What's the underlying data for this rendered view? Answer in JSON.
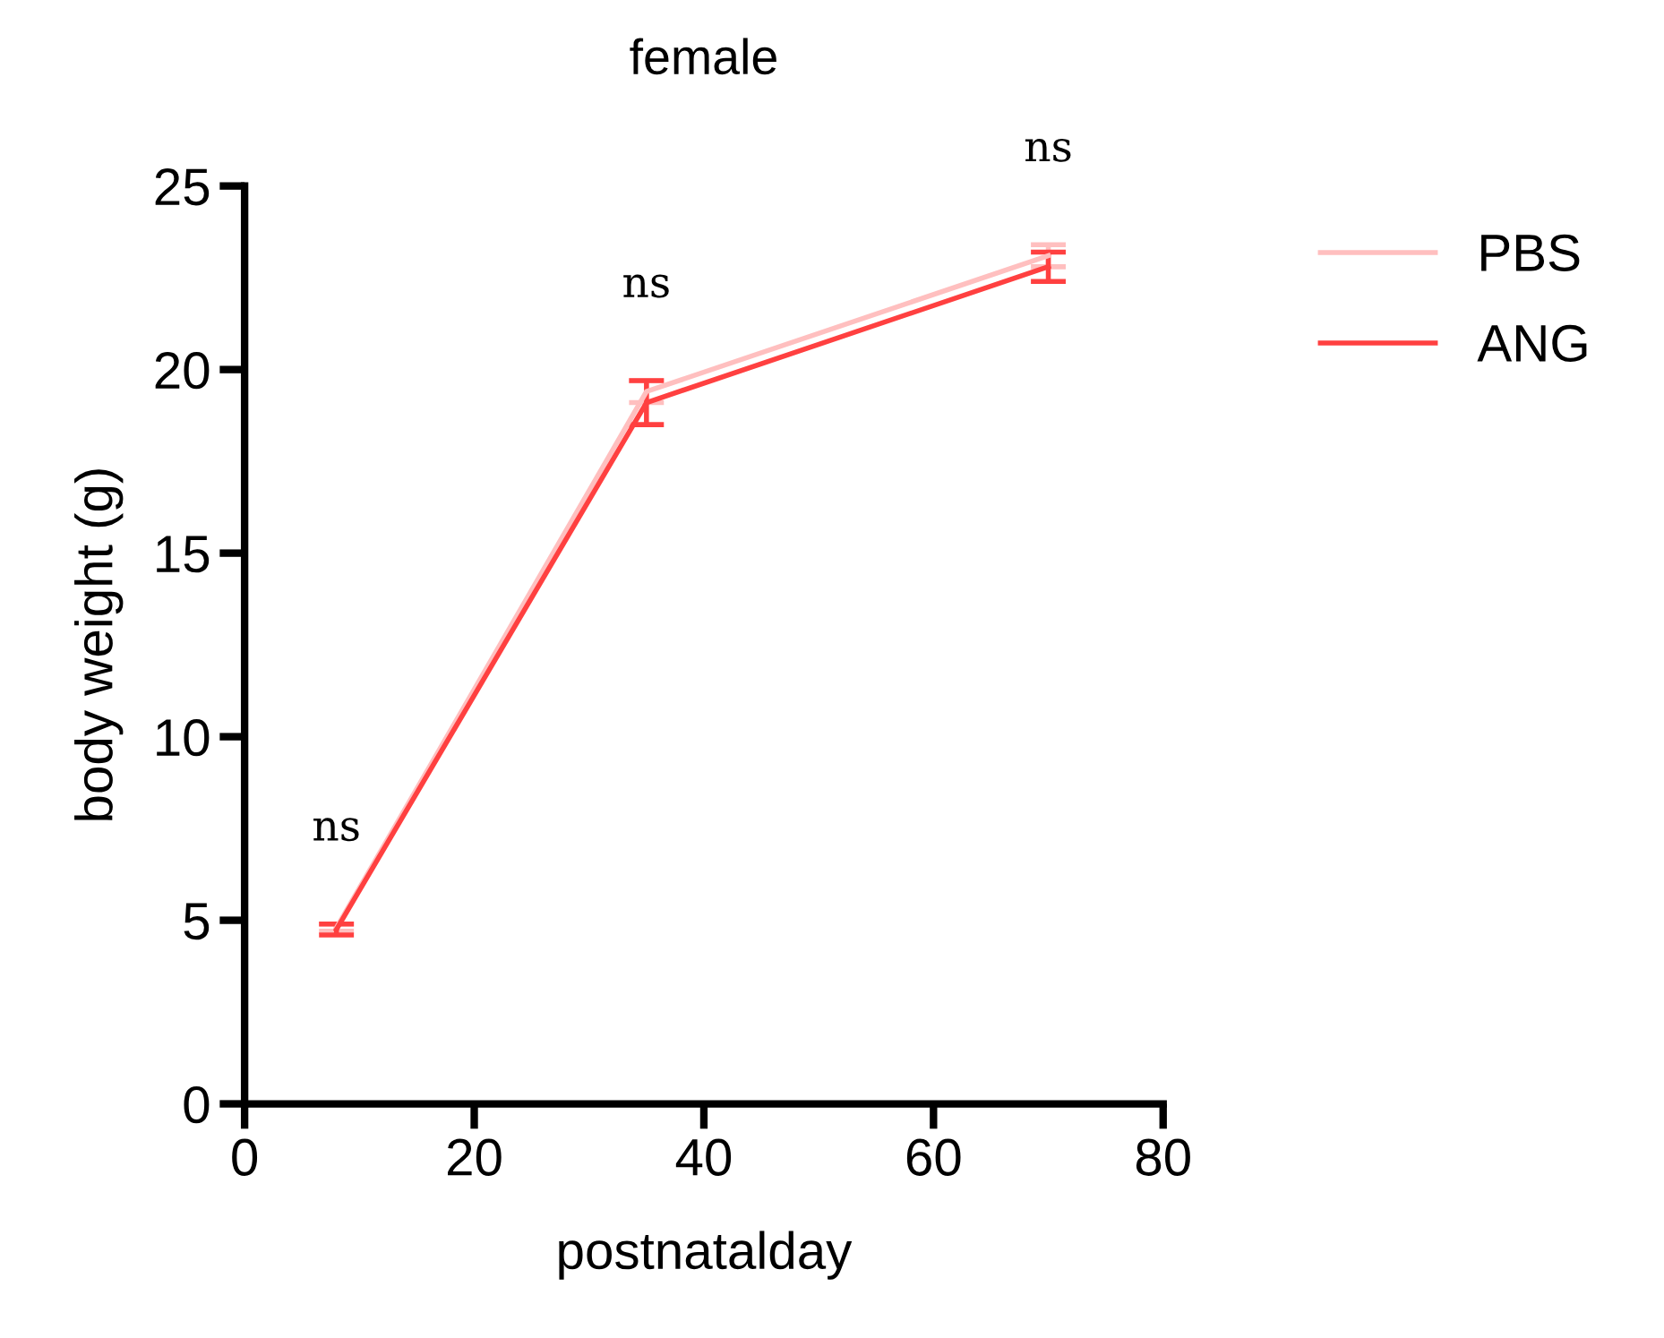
{
  "chart_data": {
    "type": "line",
    "title": "female",
    "xlabel": "postnatalday",
    "ylabel": "body weight (g)",
    "x": [
      8,
      35,
      70
    ],
    "series": [
      {
        "name": "PBS",
        "color": "#ffbfbf",
        "values": [
          4.8,
          19.4,
          23.1
        ],
        "errors": [
          0.1,
          0.3,
          0.3
        ]
      },
      {
        "name": "ANG",
        "color": "#ff4040",
        "values": [
          4.75,
          19.1,
          22.8
        ],
        "errors": [
          0.15,
          0.6,
          0.4
        ]
      }
    ],
    "xlim": [
      0,
      80
    ],
    "xticks": [
      0,
      20,
      40,
      60,
      80
    ],
    "ylim": [
      0,
      25
    ],
    "yticks": [
      0,
      5,
      10,
      15,
      20,
      25
    ],
    "grid": false,
    "legend": "top right",
    "marker": "none",
    "line_style": "solid",
    "annotations": [
      "ns",
      "ns",
      "ns"
    ]
  }
}
